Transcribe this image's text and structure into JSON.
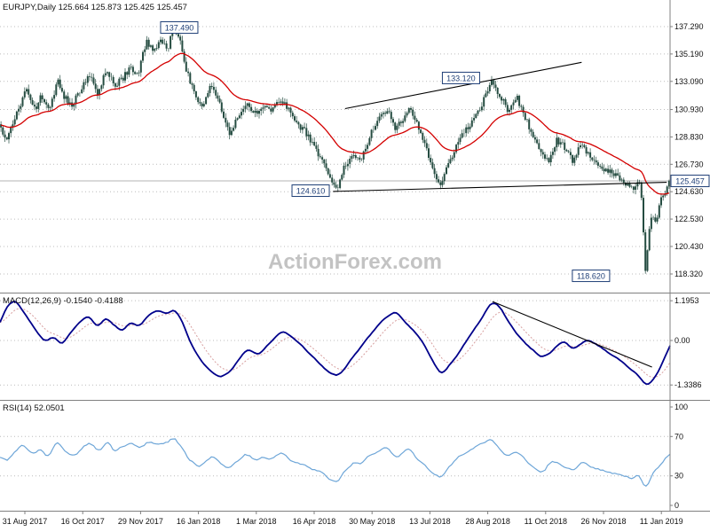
{
  "header": {
    "title": "EURJPY,Daily 125.664 125.873 125.425 125.457"
  },
  "watermark": {
    "text": "ActionForex.com"
  },
  "colors": {
    "background": "#ffffff",
    "grid": "#bcbcbc",
    "separator": "#808080",
    "axis_text": "#111111",
    "candle": "#254c41",
    "ma_line": "#d40000",
    "trendline": "#000000",
    "label_box_border": "#1f3f77",
    "label_box_text": "#1f3f77",
    "macd_main": "#00008b",
    "macd_signal": "#d8a0a0",
    "rsi_line": "#6ea6d8",
    "current_price_line": "#9a9a9a"
  },
  "chart_data": {
    "type": "candlestick",
    "symbol": "EURJPY",
    "timeframe": "Daily",
    "quote": {
      "open": 125.664,
      "high": 125.873,
      "low": 125.425,
      "close": 125.457
    },
    "current_price": 125.457,
    "x_labels": [
      "31 Aug 2017",
      "16 Oct 2017",
      "29 Nov 2017",
      "16 Jan 2018",
      "1 Mar 2018",
      "16 Apr 2018",
      "30 May 2018",
      "13 Jul 2018",
      "28 Aug 2018",
      "11 Oct 2018",
      "26 Nov 2018",
      "11 Jan 2019"
    ],
    "price_ticks": [
      "137.290",
      "135.190",
      "133.090",
      "130.930",
      "128.830",
      "126.730",
      "124.630",
      "122.530",
      "120.430",
      "118.320"
    ],
    "price_axis_range": [
      118.32,
      137.29
    ],
    "annotations": [
      {
        "text": "137.490",
        "value": 137.49,
        "x": 0.2675,
        "box_price": 137.22
      },
      {
        "text": "133.120",
        "value": 133.12,
        "x": 0.688,
        "box_price": 133.35
      },
      {
        "text": "124.610",
        "value": 124.61,
        "x": 0.4636,
        "box_price": 124.71
      },
      {
        "text": "118.620",
        "value": 118.62,
        "x": 0.882,
        "box_price": 118.18
      }
    ],
    "trendlines": [
      {
        "x1": 0.515,
        "p1": 131.0,
        "x2": 0.868,
        "p2": 134.55
      },
      {
        "x1": 0.497,
        "p1": 124.65,
        "x2": 0.995,
        "p2": 125.35
      }
    ],
    "price_anchors": [
      [
        0.0,
        129.6
      ],
      [
        0.008,
        128.6
      ],
      [
        0.022,
        130.6
      ],
      [
        0.038,
        132.4
      ],
      [
        0.052,
        130.9
      ],
      [
        0.06,
        131.9
      ],
      [
        0.072,
        130.8
      ],
      [
        0.085,
        133.1
      ],
      [
        0.095,
        131.9
      ],
      [
        0.105,
        131.1
      ],
      [
        0.118,
        132.4
      ],
      [
        0.132,
        133.6
      ],
      [
        0.145,
        132.1
      ],
      [
        0.158,
        134.2
      ],
      [
        0.17,
        132.7
      ],
      [
        0.182,
        133.3
      ],
      [
        0.195,
        134.2
      ],
      [
        0.205,
        133.6
      ],
      [
        0.218,
        136.3
      ],
      [
        0.228,
        135.2
      ],
      [
        0.24,
        136.2
      ],
      [
        0.25,
        135.6
      ],
      [
        0.258,
        137.49
      ],
      [
        0.268,
        136.3
      ],
      [
        0.278,
        133.9
      ],
      [
        0.29,
        132.1
      ],
      [
        0.302,
        131.2
      ],
      [
        0.314,
        133.0
      ],
      [
        0.328,
        131.3
      ],
      [
        0.342,
        129.0
      ],
      [
        0.355,
        130.4
      ],
      [
        0.368,
        131.3
      ],
      [
        0.38,
        130.6
      ],
      [
        0.392,
        131.1
      ],
      [
        0.405,
        130.7
      ],
      [
        0.418,
        131.7
      ],
      [
        0.43,
        130.9
      ],
      [
        0.442,
        129.9
      ],
      [
        0.455,
        129.3
      ],
      [
        0.468,
        128.2
      ],
      [
        0.48,
        127.0
      ],
      [
        0.492,
        125.9
      ],
      [
        0.503,
        124.61
      ],
      [
        0.512,
        126.3
      ],
      [
        0.525,
        127.3
      ],
      [
        0.538,
        127.0
      ],
      [
        0.552,
        128.9
      ],
      [
        0.565,
        130.4
      ],
      [
        0.578,
        130.9
      ],
      [
        0.59,
        129.5
      ],
      [
        0.602,
        130.3
      ],
      [
        0.612,
        131.2
      ],
      [
        0.625,
        129.6
      ],
      [
        0.638,
        127.6
      ],
      [
        0.65,
        125.6
      ],
      [
        0.658,
        124.95
      ],
      [
        0.668,
        126.5
      ],
      [
        0.68,
        127.9
      ],
      [
        0.694,
        129.3
      ],
      [
        0.708,
        130.2
      ],
      [
        0.722,
        131.6
      ],
      [
        0.735,
        133.12
      ],
      [
        0.748,
        131.9
      ],
      [
        0.76,
        130.7
      ],
      [
        0.772,
        131.9
      ],
      [
        0.785,
        130.2
      ],
      [
        0.798,
        128.9
      ],
      [
        0.81,
        127.6
      ],
      [
        0.82,
        126.9
      ],
      [
        0.832,
        128.6
      ],
      [
        0.845,
        128.0
      ],
      [
        0.856,
        127.0
      ],
      [
        0.868,
        128.2
      ],
      [
        0.88,
        127.5
      ],
      [
        0.893,
        126.8
      ],
      [
        0.906,
        126.3
      ],
      [
        0.92,
        125.9
      ],
      [
        0.932,
        125.3
      ],
      [
        0.944,
        124.9
      ],
      [
        0.95,
        125.1
      ],
      [
        0.956,
        125.5
      ],
      [
        0.96,
        123.2
      ],
      [
        0.9647,
        118.62
      ],
      [
        0.97,
        121.8
      ],
      [
        0.975,
        123.0
      ],
      [
        0.981,
        122.4
      ],
      [
        0.987,
        123.8
      ],
      [
        0.993,
        124.6
      ],
      [
        1.0,
        125.457
      ]
    ],
    "macd": {
      "label": "MACD(12,26,9) -0.1540 -0.4188",
      "params": "12,26,9",
      "value_main": -0.154,
      "value_signal": -0.4188,
      "ticks": [
        "1.1953",
        "0.00",
        "-1.3386"
      ],
      "axis_range": [
        -1.55,
        1.45
      ],
      "trendline": {
        "x1": 0.735,
        "v1": 1.17,
        "x2": 0.973,
        "v2": -0.8
      },
      "anchors": [
        [
          0.0,
          0.55
        ],
        [
          0.012,
          1.1
        ],
        [
          0.025,
          1.18
        ],
        [
          0.04,
          0.7
        ],
        [
          0.055,
          0.28
        ],
        [
          0.068,
          -0.05
        ],
        [
          0.08,
          0.15
        ],
        [
          0.092,
          -0.12
        ],
        [
          0.105,
          0.22
        ],
        [
          0.118,
          0.55
        ],
        [
          0.132,
          0.75
        ],
        [
          0.145,
          0.4
        ],
        [
          0.158,
          0.7
        ],
        [
          0.17,
          0.45
        ],
        [
          0.182,
          0.28
        ],
        [
          0.195,
          0.55
        ],
        [
          0.208,
          0.42
        ],
        [
          0.222,
          0.78
        ],
        [
          0.235,
          0.9
        ],
        [
          0.25,
          0.8
        ],
        [
          0.26,
          0.95
        ],
        [
          0.272,
          0.6
        ],
        [
          0.285,
          -0.1
        ],
        [
          0.3,
          -0.6
        ],
        [
          0.315,
          -0.95
        ],
        [
          0.33,
          -1.12
        ],
        [
          0.345,
          -0.9
        ],
        [
          0.358,
          -0.5
        ],
        [
          0.37,
          -0.25
        ],
        [
          0.385,
          -0.42
        ],
        [
          0.398,
          -0.18
        ],
        [
          0.41,
          0.08
        ],
        [
          0.422,
          0.28
        ],
        [
          0.435,
          0.15
        ],
        [
          0.448,
          -0.12
        ],
        [
          0.46,
          -0.35
        ],
        [
          0.475,
          -0.65
        ],
        [
          0.49,
          -0.95
        ],
        [
          0.505,
          -1.08
        ],
        [
          0.518,
          -0.75
        ],
        [
          0.532,
          -0.35
        ],
        [
          0.548,
          0.05
        ],
        [
          0.562,
          0.4
        ],
        [
          0.578,
          0.72
        ],
        [
          0.59,
          0.88
        ],
        [
          0.602,
          0.6
        ],
        [
          0.615,
          0.35
        ],
        [
          0.628,
          0.05
        ],
        [
          0.64,
          -0.4
        ],
        [
          0.652,
          -0.85
        ],
        [
          0.66,
          -1.02
        ],
        [
          0.672,
          -0.72
        ],
        [
          0.685,
          -0.35
        ],
        [
          0.698,
          0.05
        ],
        [
          0.712,
          0.45
        ],
        [
          0.724,
          0.85
        ],
        [
          0.735,
          1.19
        ],
        [
          0.746,
          1.02
        ],
        [
          0.758,
          0.6
        ],
        [
          0.77,
          0.22
        ],
        [
          0.782,
          -0.05
        ],
        [
          0.795,
          -0.3
        ],
        [
          0.808,
          -0.5
        ],
        [
          0.82,
          -0.42
        ],
        [
          0.832,
          -0.15
        ],
        [
          0.843,
          -0.02
        ],
        [
          0.855,
          -0.25
        ],
        [
          0.867,
          -0.1
        ],
        [
          0.878,
          0.02
        ],
        [
          0.89,
          -0.12
        ],
        [
          0.902,
          -0.28
        ],
        [
          0.915,
          -0.45
        ],
        [
          0.928,
          -0.62
        ],
        [
          0.94,
          -0.85
        ],
        [
          0.952,
          -1.05
        ],
        [
          0.963,
          -1.34
        ],
        [
          0.972,
          -1.28
        ],
        [
          0.98,
          -1.05
        ],
        [
          0.988,
          -0.7
        ],
        [
          0.994,
          -0.4
        ],
        [
          1.0,
          -0.154
        ]
      ]
    },
    "rsi": {
      "label": "RSI(14) 52.0501",
      "period": 14,
      "value": 52.0501,
      "ticks": [
        "100",
        "70",
        "30",
        "0"
      ],
      "levels": [
        70,
        30
      ],
      "axis_range": [
        0,
        100
      ],
      "anchors": [
        [
          0.0,
          50
        ],
        [
          0.01,
          44
        ],
        [
          0.022,
          56
        ],
        [
          0.035,
          63
        ],
        [
          0.048,
          52
        ],
        [
          0.06,
          58
        ],
        [
          0.072,
          48
        ],
        [
          0.085,
          65
        ],
        [
          0.098,
          54
        ],
        [
          0.11,
          50
        ],
        [
          0.122,
          58
        ],
        [
          0.135,
          64
        ],
        [
          0.148,
          53
        ],
        [
          0.16,
          66
        ],
        [
          0.172,
          55
        ],
        [
          0.185,
          60
        ],
        [
          0.198,
          63
        ],
        [
          0.21,
          57
        ],
        [
          0.222,
          66
        ],
        [
          0.235,
          62
        ],
        [
          0.25,
          64
        ],
        [
          0.258,
          70
        ],
        [
          0.27,
          60
        ],
        [
          0.283,
          45
        ],
        [
          0.295,
          40
        ],
        [
          0.308,
          44
        ],
        [
          0.32,
          52
        ],
        [
          0.33,
          42
        ],
        [
          0.342,
          35
        ],
        [
          0.355,
          46
        ],
        [
          0.368,
          52
        ],
        [
          0.38,
          46
        ],
        [
          0.392,
          50
        ],
        [
          0.405,
          47
        ],
        [
          0.418,
          54
        ],
        [
          0.43,
          48
        ],
        [
          0.442,
          43
        ],
        [
          0.455,
          40
        ],
        [
          0.468,
          36
        ],
        [
          0.48,
          32
        ],
        [
          0.492,
          27
        ],
        [
          0.503,
          22
        ],
        [
          0.515,
          36
        ],
        [
          0.528,
          44
        ],
        [
          0.54,
          41
        ],
        [
          0.552,
          50
        ],
        [
          0.565,
          57
        ],
        [
          0.578,
          60
        ],
        [
          0.59,
          48
        ],
        [
          0.602,
          54
        ],
        [
          0.612,
          60
        ],
        [
          0.625,
          46
        ],
        [
          0.638,
          37
        ],
        [
          0.65,
          30
        ],
        [
          0.658,
          27
        ],
        [
          0.67,
          40
        ],
        [
          0.682,
          48
        ],
        [
          0.695,
          54
        ],
        [
          0.708,
          58
        ],
        [
          0.722,
          63
        ],
        [
          0.735,
          68
        ],
        [
          0.748,
          54
        ],
        [
          0.76,
          48
        ],
        [
          0.772,
          57
        ],
        [
          0.785,
          44
        ],
        [
          0.798,
          39
        ],
        [
          0.81,
          33
        ],
        [
          0.822,
          46
        ],
        [
          0.832,
          43
        ],
        [
          0.845,
          39
        ],
        [
          0.856,
          34
        ],
        [
          0.868,
          46
        ],
        [
          0.88,
          41
        ],
        [
          0.893,
          37
        ],
        [
          0.906,
          35
        ],
        [
          0.92,
          32
        ],
        [
          0.932,
          29
        ],
        [
          0.944,
          26
        ],
        [
          0.953,
          34
        ],
        [
          0.963,
          16
        ],
        [
          0.972,
          28
        ],
        [
          0.98,
          38
        ],
        [
          0.988,
          44
        ],
        [
          0.994,
          48
        ],
        [
          1.0,
          52.05
        ]
      ]
    }
  }
}
